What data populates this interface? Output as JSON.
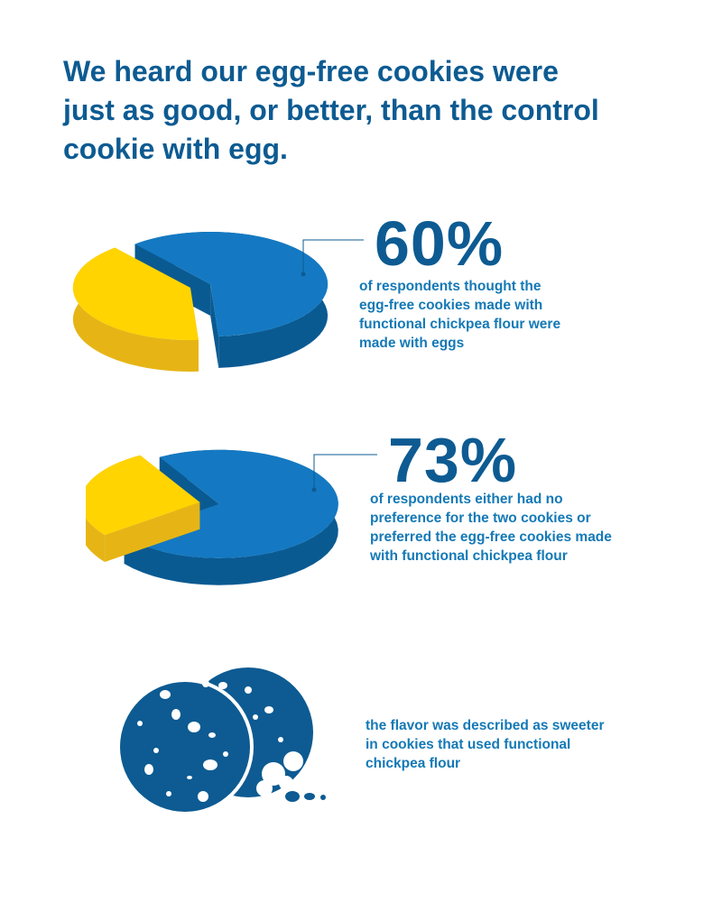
{
  "headline": {
    "lines": [
      "We heard our egg-free cookies were",
      "just as good, or better, than the control",
      "cookie with egg."
    ]
  },
  "chart_data": [
    {
      "type": "pie",
      "slices": [
        {
          "label": "",
          "value": 60,
          "color": "#1479c2"
        },
        {
          "label": "",
          "value": 40,
          "color": "#ffd400"
        }
      ],
      "annotation_value": "60%",
      "annotation_lines": [
        "of respondents thought the",
        "egg-free cookies made with",
        "functional chickpea flour were",
        "made with eggs"
      ]
    },
    {
      "type": "pie",
      "slices": [
        {
          "label": "",
          "value": 73,
          "color": "#1479c2"
        },
        {
          "label": "",
          "value": 27,
          "color": "#ffd400"
        }
      ],
      "annotation_value": "73%",
      "annotation_lines": [
        "of respondents either had no",
        "preference for the two cookies or",
        "preferred the egg-free cookies made",
        "with functional chickpea flour"
      ]
    }
  ],
  "flavor": {
    "icon": "cookie-icon",
    "lines": [
      "the flavor was described as sweeter",
      "in cookies that used functional",
      "chickpea flour"
    ]
  },
  "colors": {
    "primary_dark": "#0d5b92",
    "primary": "#1479c2",
    "text_blue": "#1479b6",
    "yellow": "#ffd400",
    "yellow_side": "#e6b515",
    "blue_side": "#0a5a92"
  }
}
